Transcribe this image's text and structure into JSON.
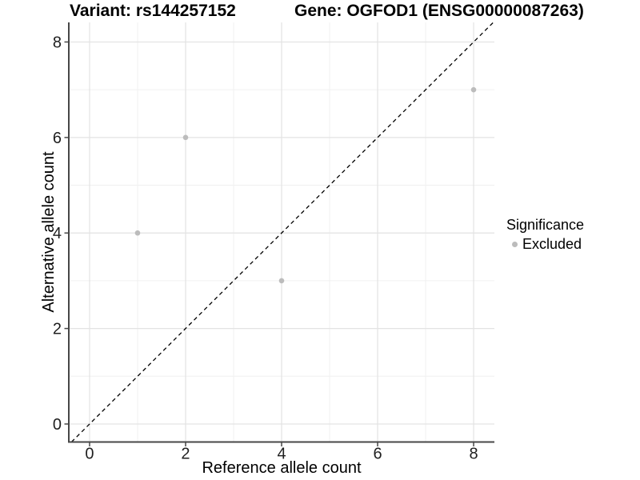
{
  "chart_data": {
    "type": "scatter",
    "titles": {
      "left": "Variant: rs144257152",
      "right": "Gene: OGFOD1 (ENSG00000087263)"
    },
    "xlabel": "Reference allele count",
    "ylabel": "Alternative allele count",
    "axes": {
      "xlim": [
        -0.433,
        8.433
      ],
      "ylim": [
        -0.377,
        8.41
      ],
      "x_ticks": [
        0,
        2,
        4,
        6,
        8
      ],
      "y_ticks": [
        0,
        2,
        4,
        6,
        8
      ],
      "x_minor": [
        1,
        3,
        5,
        7
      ],
      "y_minor": [
        1,
        3,
        5,
        7
      ],
      "grid": "major+minor"
    },
    "series": [
      {
        "name": "Excluded",
        "color": "#bcbcbc",
        "points": [
          {
            "x": 1,
            "y": 4
          },
          {
            "x": 2,
            "y": 6
          },
          {
            "x": 4,
            "y": 3
          },
          {
            "x": 8,
            "y": 7
          }
        ]
      }
    ],
    "reference_line": {
      "type": "identity",
      "slope": 1,
      "intercept": 0,
      "style": "dashed",
      "color": "#000000"
    },
    "legend": {
      "title": "Significance",
      "position": "right",
      "items": [
        {
          "label": "Excluded",
          "color": "#bcbcbc"
        }
      ]
    },
    "colors": {
      "background": "#ffffff",
      "grid_major": "#e3e3e3",
      "grid_minor": "#f0f0f0",
      "axis_line": "#474747",
      "tick_label": "#1f1f1f",
      "title": "#000000"
    }
  }
}
